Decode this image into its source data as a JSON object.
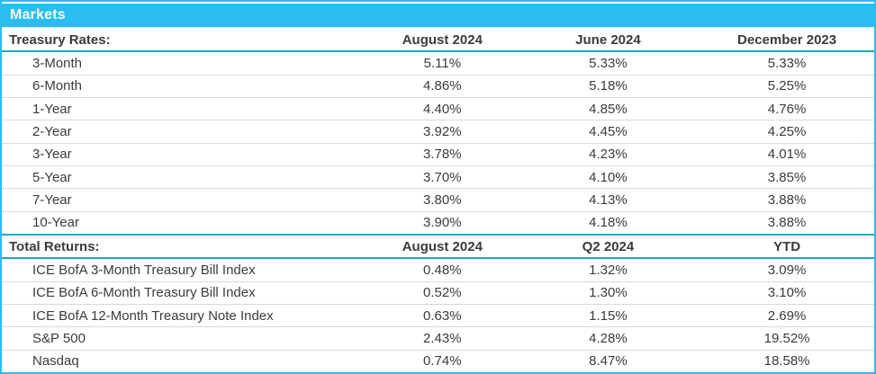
{
  "page": {
    "title": "Markets"
  },
  "colors": {
    "accent_cyan": "#29bdf0",
    "accent_teal": "#17aeb2",
    "divider_gray": "#d9d9d9",
    "text": "#3b3b3b",
    "title_text": "#ffffff"
  },
  "treasury_section": {
    "label": "Treasury Rates:",
    "columns": [
      "August 2024",
      "June 2024",
      "December 2023"
    ],
    "rows": [
      {
        "label": "3-Month",
        "values": [
          "5.11%",
          "5.33%",
          "5.33%"
        ]
      },
      {
        "label": "6-Month",
        "values": [
          "4.86%",
          "5.18%",
          "5.25%"
        ]
      },
      {
        "label": "1-Year",
        "values": [
          "4.40%",
          "4.85%",
          "4.76%"
        ]
      },
      {
        "label": "2-Year",
        "values": [
          "3.92%",
          "4.45%",
          "4.25%"
        ]
      },
      {
        "label": "3-Year",
        "values": [
          "3.78%",
          "4.23%",
          "4.01%"
        ]
      },
      {
        "label": "5-Year",
        "values": [
          "3.70%",
          "4.10%",
          "3.85%"
        ]
      },
      {
        "label": "7-Year",
        "values": [
          "3.80%",
          "4.13%",
          "3.88%"
        ]
      },
      {
        "label": "10-Year",
        "values": [
          "3.90%",
          "4.18%",
          "3.88%"
        ]
      }
    ]
  },
  "returns_section": {
    "label": "Total Returns:",
    "columns": [
      "August 2024",
      "Q2 2024",
      "YTD"
    ],
    "rows": [
      {
        "label": "ICE BofA 3-Month Treasury Bill Index",
        "values": [
          "0.48%",
          "1.32%",
          "3.09%"
        ]
      },
      {
        "label": "ICE BofA 6-Month Treasury Bill Index",
        "values": [
          "0.52%",
          "1.30%",
          "3.10%"
        ]
      },
      {
        "label": "ICE BofA 12-Month Treasury Note Index",
        "values": [
          "0.63%",
          "1.15%",
          "2.69%"
        ]
      },
      {
        "label": "S&P 500",
        "values": [
          "2.43%",
          "4.28%",
          "19.52%"
        ]
      },
      {
        "label": "Nasdaq",
        "values": [
          "0.74%",
          "8.47%",
          "18.58%"
        ]
      }
    ]
  }
}
